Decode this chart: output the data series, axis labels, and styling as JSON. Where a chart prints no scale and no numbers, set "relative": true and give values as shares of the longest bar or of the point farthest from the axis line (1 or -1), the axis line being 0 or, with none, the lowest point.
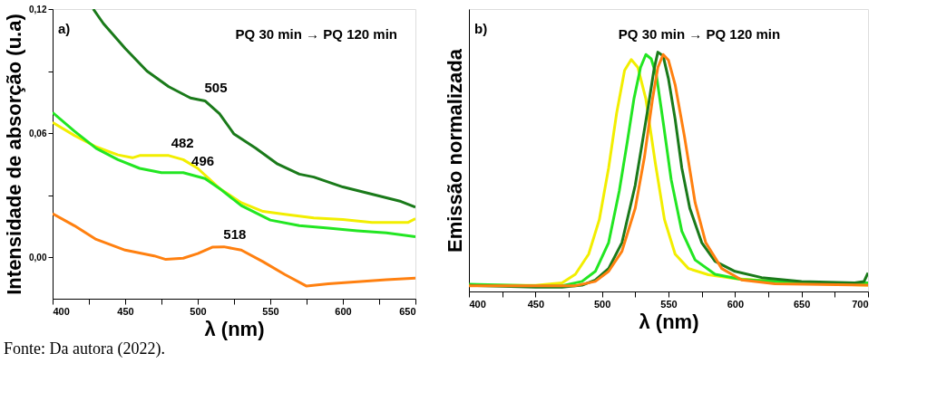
{
  "chart_data": [
    {
      "type": "line",
      "xlabel": "λ  (nm)",
      "ylabel": "Intensidade de absorção (u.a)",
      "annotations": [
        "a)",
        "PQ 30 min → PQ 120 min",
        "Fonte: Da autora (2022).",
        {
          "text": "505",
          "x": 505,
          "y": 0.0756
        },
        {
          "text": "482",
          "x": 482,
          "y": 0.0492
        },
        {
          "text": "496",
          "x": 496,
          "y": 0.0405
        },
        {
          "text": "518",
          "x": 518,
          "y": 0.0051
        }
      ],
      "xlim": [
        400,
        650
      ],
      "ylim": [
        -0.02,
        0.12
      ],
      "xticks": [
        400,
        {
          "value": 425,
          "label": null
        },
        450,
        {
          "value": 475,
          "label": null
        },
        500,
        {
          "value": 525,
          "label": null
        },
        550,
        {
          "value": 575,
          "label": null
        },
        600,
        {
          "value": 625,
          "label": null
        },
        650
      ],
      "yticks": [
        {
          "value": 0,
          "label": "0,00"
        },
        {
          "value": 0.03,
          "label": null
        },
        {
          "value": 0.06,
          "label": "0,06"
        },
        {
          "value": 0.09,
          "label": null
        },
        {
          "value": 0.12,
          "label": "0,12"
        }
      ],
      "grid": false,
      "marker": "none",
      "line_style": "solid",
      "series": [
        {
          "color": "#1a7a1a",
          "x": [
            428,
            435,
            450,
            465,
            480,
            495,
            505,
            515,
            525,
            540,
            555,
            570,
            580,
            600,
            620,
            640,
            650
          ],
          "values": [
            0.12,
            0.113,
            0.101,
            0.09,
            0.0825,
            0.077,
            0.0756,
            0.0694,
            0.0596,
            0.0527,
            0.0451,
            0.0402,
            0.0388,
            0.034,
            0.0305,
            0.027,
            0.0243
          ]
        },
        {
          "color": "#f2ee00",
          "x": [
            400,
            415,
            430,
            445,
            455,
            460,
            480,
            490,
            500,
            515,
            530,
            545,
            560,
            580,
            600,
            620,
            645,
            650
          ],
          "values": [
            0.0652,
            0.0589,
            0.0534,
            0.0495,
            0.0481,
            0.0492,
            0.0492,
            0.0472,
            0.043,
            0.0333,
            0.0264,
            0.0222,
            0.0208,
            0.019,
            0.0183,
            0.0169,
            0.0169,
            0.0187
          ]
        },
        {
          "color": "#22e622",
          "x": [
            400,
            415,
            430,
            445,
            460,
            475,
            490,
            505,
            515,
            530,
            550,
            570,
            590,
            610,
            630,
            650
          ],
          "values": [
            0.07,
            0.061,
            0.0527,
            0.0472,
            0.043,
            0.0409,
            0.0409,
            0.0381,
            0.0333,
            0.025,
            0.018,
            0.0153,
            0.0141,
            0.0128,
            0.0118,
            0.01
          ]
        },
        {
          "color": "#ff8010",
          "x": [
            400,
            415,
            430,
            450,
            470,
            478,
            490,
            500,
            510,
            518,
            530,
            545,
            560,
            575,
            590,
            610,
            630,
            650
          ],
          "values": [
            0.0211,
            0.0153,
            0.0087,
            0.0035,
            0.0007,
            -0.001,
            -0.0004,
            0.0018,
            0.0049,
            0.0051,
            0.0035,
            -0.0021,
            -0.0083,
            -0.0139,
            -0.0128,
            -0.0118,
            -0.0108,
            -0.01
          ]
        }
      ]
    },
    {
      "type": "line",
      "xlabel": "λ (nm)",
      "ylabel": "Emissão normalizada",
      "relative": true,
      "annotations": [
        "b)",
        "PQ 30 min → PQ 120 min"
      ],
      "xlim": [
        400,
        700
      ],
      "xticks": [
        400,
        {
          "value": 425,
          "label": null
        },
        450,
        {
          "value": 475,
          "label": null
        },
        500,
        {
          "value": 525,
          "label": null
        },
        550,
        {
          "value": 575,
          "label": null
        },
        600,
        {
          "value": 625,
          "label": null
        },
        650,
        {
          "value": 675,
          "label": null
        },
        700
      ],
      "grid": false,
      "marker": "none",
      "line_style": "solid",
      "series": [
        {
          "color": "#f2ee00",
          "x": [
            400,
            450,
            470,
            480,
            490,
            498,
            505,
            511,
            517,
            522,
            527,
            533,
            540,
            547,
            555,
            565,
            580,
            600,
            650,
            700
          ],
          "values": [
            0.026,
            0.026,
            0.036,
            0.072,
            0.156,
            0.3,
            0.516,
            0.744,
            0.924,
            0.969,
            0.936,
            0.804,
            0.54,
            0.3,
            0.156,
            0.096,
            0.07,
            0.054,
            0.034,
            0.026
          ]
        },
        {
          "color": "#22e622",
          "x": [
            400,
            450,
            470,
            485,
            495,
            505,
            513,
            519,
            524,
            529,
            533,
            537,
            541,
            546,
            552,
            560,
            570,
            585,
            605,
            650,
            700
          ],
          "values": [
            0.03,
            0.024,
            0.024,
            0.042,
            0.084,
            0.204,
            0.42,
            0.624,
            0.804,
            0.936,
            0.99,
            0.972,
            0.9,
            0.708,
            0.468,
            0.252,
            0.132,
            0.072,
            0.05,
            0.036,
            0.036
          ]
        },
        {
          "color": "#1a7a1a",
          "x": [
            400,
            450,
            470,
            485,
            495,
            505,
            515,
            525,
            530,
            535,
            539,
            542,
            546,
            550,
            555,
            560,
            566,
            575,
            585,
            600,
            620,
            650,
            690,
            697,
            700
          ],
          "values": [
            0.026,
            0.018,
            0.018,
            0.026,
            0.048,
            0.096,
            0.204,
            0.444,
            0.612,
            0.78,
            0.924,
            1.0,
            0.984,
            0.888,
            0.72,
            0.516,
            0.348,
            0.204,
            0.126,
            0.084,
            0.058,
            0.042,
            0.036,
            0.042,
            0.078
          ]
        },
        {
          "color": "#ff8010",
          "x": [
            400,
            450,
            480,
            495,
            505,
            515,
            525,
            532,
            538,
            542,
            546,
            550,
            555,
            562,
            570,
            578,
            590,
            605,
            630,
            700
          ],
          "values": [
            0.024,
            0.024,
            0.024,
            0.042,
            0.084,
            0.168,
            0.348,
            0.564,
            0.804,
            0.936,
            0.99,
            0.966,
            0.864,
            0.648,
            0.372,
            0.204,
            0.096,
            0.048,
            0.032,
            0.026
          ]
        }
      ]
    }
  ]
}
